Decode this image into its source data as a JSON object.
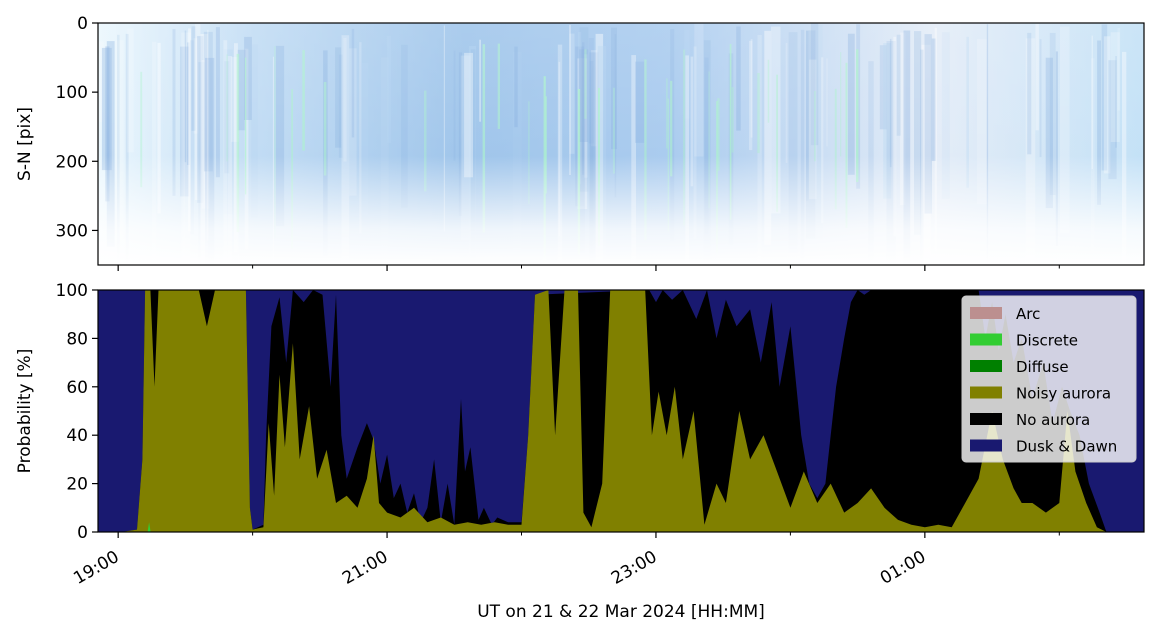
{
  "chart_data": [
    {
      "type": "heatmap",
      "panel": "keogram",
      "ylabel": "S-N [pix]",
      "yticks": [
        0,
        100,
        200,
        300
      ],
      "ylim": [
        350,
        0
      ],
      "colors": {
        "sky_light": "#eaf4fc",
        "sky_mid": "#a9cdef",
        "sky_dark": "#6f9fd8",
        "aurora_green": "#9ef0c4",
        "base_glow": "#ffffff"
      }
    },
    {
      "type": "area",
      "panel": "probability",
      "ylabel": "Probability [%]",
      "xlabel": "UT on 21 & 22 Mar 2024 [HH:MM]",
      "yticks": [
        0,
        20,
        40,
        60,
        80,
        100
      ],
      "ylim": [
        0,
        100
      ],
      "xlim_hours": [
        18.85,
        26.63
      ],
      "xticks_major": [
        {
          "hour": 19,
          "label": "19:00"
        },
        {
          "hour": 21,
          "label": "21:00"
        },
        {
          "hour": 23,
          "label": "23:00"
        },
        {
          "hour": 25,
          "label": "01:00"
        }
      ],
      "xticks_minor": [
        20,
        22,
        24,
        26
      ],
      "legend_position": "upper-right",
      "series": [
        {
          "name": "Arc",
          "color": "#bc8f8f"
        },
        {
          "name": "Discrete",
          "color": "#32cd32"
        },
        {
          "name": "Diffuse",
          "color": "#008000"
        },
        {
          "name": "Noisy aurora",
          "color": "#808000"
        },
        {
          "name": "No aurora",
          "color": "#000000"
        },
        {
          "name": "Dusk & Dawn",
          "color": "#191970"
        }
      ],
      "stack_top": {
        "note_units": "x in hours UT after 21 Mar 00:00; y in percent (cumulative top of layer)",
        "noisy_aurora": [
          [
            18.85,
            0
          ],
          [
            19.02,
            0
          ],
          [
            19.14,
            1
          ],
          [
            19.18,
            30
          ],
          [
            19.2,
            100
          ],
          [
            19.24,
            100
          ],
          [
            19.27,
            60
          ],
          [
            19.3,
            100
          ],
          [
            19.6,
            100
          ],
          [
            19.66,
            85
          ],
          [
            19.72,
            100
          ],
          [
            19.95,
            100
          ],
          [
            19.98,
            10
          ],
          [
            20.0,
            1
          ],
          [
            20.08,
            2
          ],
          [
            20.12,
            45
          ],
          [
            20.16,
            15
          ],
          [
            20.2,
            65
          ],
          [
            20.24,
            35
          ],
          [
            20.3,
            78
          ],
          [
            20.35,
            30
          ],
          [
            20.42,
            52
          ],
          [
            20.48,
            22
          ],
          [
            20.55,
            34
          ],
          [
            20.62,
            12
          ],
          [
            20.7,
            15
          ],
          [
            20.78,
            10
          ],
          [
            20.85,
            22
          ],
          [
            20.9,
            40
          ],
          [
            20.94,
            12
          ],
          [
            21.0,
            8
          ],
          [
            21.1,
            6
          ],
          [
            21.2,
            10
          ],
          [
            21.3,
            4
          ],
          [
            21.4,
            6
          ],
          [
            21.5,
            3
          ],
          [
            21.6,
            4
          ],
          [
            21.7,
            3
          ],
          [
            21.8,
            4
          ],
          [
            21.9,
            3
          ],
          [
            22.0,
            3
          ],
          [
            22.05,
            40
          ],
          [
            22.1,
            98
          ],
          [
            22.2,
            100
          ],
          [
            22.25,
            40
          ],
          [
            22.32,
            100
          ],
          [
            22.42,
            100
          ],
          [
            22.46,
            8
          ],
          [
            22.52,
            2
          ],
          [
            22.6,
            20
          ],
          [
            22.66,
            100
          ],
          [
            22.75,
            100
          ],
          [
            22.85,
            100
          ],
          [
            22.92,
            100
          ],
          [
            22.97,
            40
          ],
          [
            23.02,
            58
          ],
          [
            23.08,
            40
          ],
          [
            23.14,
            60
          ],
          [
            23.2,
            30
          ],
          [
            23.28,
            50
          ],
          [
            23.36,
            3
          ],
          [
            23.45,
            20
          ],
          [
            23.52,
            12
          ],
          [
            23.62,
            50
          ],
          [
            23.7,
            30
          ],
          [
            23.8,
            40
          ],
          [
            23.9,
            25
          ],
          [
            24.0,
            10
          ],
          [
            24.1,
            25
          ],
          [
            24.2,
            12
          ],
          [
            24.3,
            20
          ],
          [
            24.4,
            8
          ],
          [
            24.5,
            12
          ],
          [
            24.6,
            18
          ],
          [
            24.7,
            10
          ],
          [
            24.8,
            5
          ],
          [
            24.9,
            3
          ],
          [
            25.0,
            2
          ],
          [
            25.1,
            3
          ],
          [
            25.2,
            2
          ],
          [
            25.3,
            12
          ],
          [
            25.4,
            22
          ],
          [
            25.5,
            50
          ],
          [
            25.58,
            30
          ],
          [
            25.66,
            18
          ],
          [
            25.72,
            12
          ],
          [
            25.8,
            12
          ],
          [
            25.9,
            8
          ],
          [
            26.0,
            12
          ],
          [
            26.06,
            50
          ],
          [
            26.12,
            25
          ],
          [
            26.2,
            12
          ],
          [
            26.28,
            2
          ],
          [
            26.35,
            0
          ],
          [
            26.63,
            0
          ]
        ],
        "no_aurora": [
          [
            18.85,
            0
          ],
          [
            19.02,
            0
          ],
          [
            19.14,
            1
          ],
          [
            19.18,
            30
          ],
          [
            19.2,
            100
          ],
          [
            19.95,
            100
          ],
          [
            19.98,
            10
          ],
          [
            20.0,
            1
          ],
          [
            20.08,
            3
          ],
          [
            20.1,
            40
          ],
          [
            20.14,
            85
          ],
          [
            20.2,
            97
          ],
          [
            20.25,
            70
          ],
          [
            20.3,
            100
          ],
          [
            20.38,
            95
          ],
          [
            20.45,
            100
          ],
          [
            20.52,
            98
          ],
          [
            20.58,
            60
          ],
          [
            20.62,
            98
          ],
          [
            20.66,
            40
          ],
          [
            20.7,
            22
          ],
          [
            20.78,
            35
          ],
          [
            20.85,
            45
          ],
          [
            20.9,
            38
          ],
          [
            20.95,
            20
          ],
          [
            21.0,
            32
          ],
          [
            21.05,
            14
          ],
          [
            21.1,
            20
          ],
          [
            21.15,
            8
          ],
          [
            21.2,
            16
          ],
          [
            21.25,
            4
          ],
          [
            21.3,
            10
          ],
          [
            21.35,
            30
          ],
          [
            21.4,
            4
          ],
          [
            21.45,
            20
          ],
          [
            21.5,
            3
          ],
          [
            21.55,
            55
          ],
          [
            21.58,
            25
          ],
          [
            21.62,
            35
          ],
          [
            21.68,
            5
          ],
          [
            21.72,
            10
          ],
          [
            21.78,
            3
          ],
          [
            21.82,
            6
          ],
          [
            21.9,
            4
          ],
          [
            22.0,
            4
          ],
          [
            22.05,
            40
          ],
          [
            22.1,
            98
          ],
          [
            22.92,
            100
          ],
          [
            22.95,
            100
          ],
          [
            23.0,
            95
          ],
          [
            23.05,
            100
          ],
          [
            23.12,
            96
          ],
          [
            23.2,
            100
          ],
          [
            23.3,
            88
          ],
          [
            23.38,
            100
          ],
          [
            23.45,
            80
          ],
          [
            23.52,
            96
          ],
          [
            23.6,
            85
          ],
          [
            23.7,
            92
          ],
          [
            23.78,
            70
          ],
          [
            23.86,
            95
          ],
          [
            23.92,
            60
          ],
          [
            24.0,
            85
          ],
          [
            24.08,
            40
          ],
          [
            24.14,
            20
          ],
          [
            24.2,
            14
          ],
          [
            24.26,
            20
          ],
          [
            24.3,
            40
          ],
          [
            24.34,
            60
          ],
          [
            24.4,
            80
          ],
          [
            24.45,
            95
          ],
          [
            24.5,
            100
          ],
          [
            24.55,
            98
          ],
          [
            24.6,
            100
          ],
          [
            24.62,
            100
          ],
          [
            25.4,
            100
          ],
          [
            25.45,
            80
          ],
          [
            25.5,
            95
          ],
          [
            25.55,
            75
          ],
          [
            25.6,
            90
          ],
          [
            25.66,
            70
          ],
          [
            25.72,
            80
          ],
          [
            25.8,
            55
          ],
          [
            25.88,
            70
          ],
          [
            25.95,
            45
          ],
          [
            26.02,
            60
          ],
          [
            26.08,
            50
          ],
          [
            26.15,
            40
          ],
          [
            26.22,
            20
          ],
          [
            26.3,
            8
          ],
          [
            26.35,
            0
          ],
          [
            26.63,
            0
          ]
        ]
      }
    }
  ]
}
